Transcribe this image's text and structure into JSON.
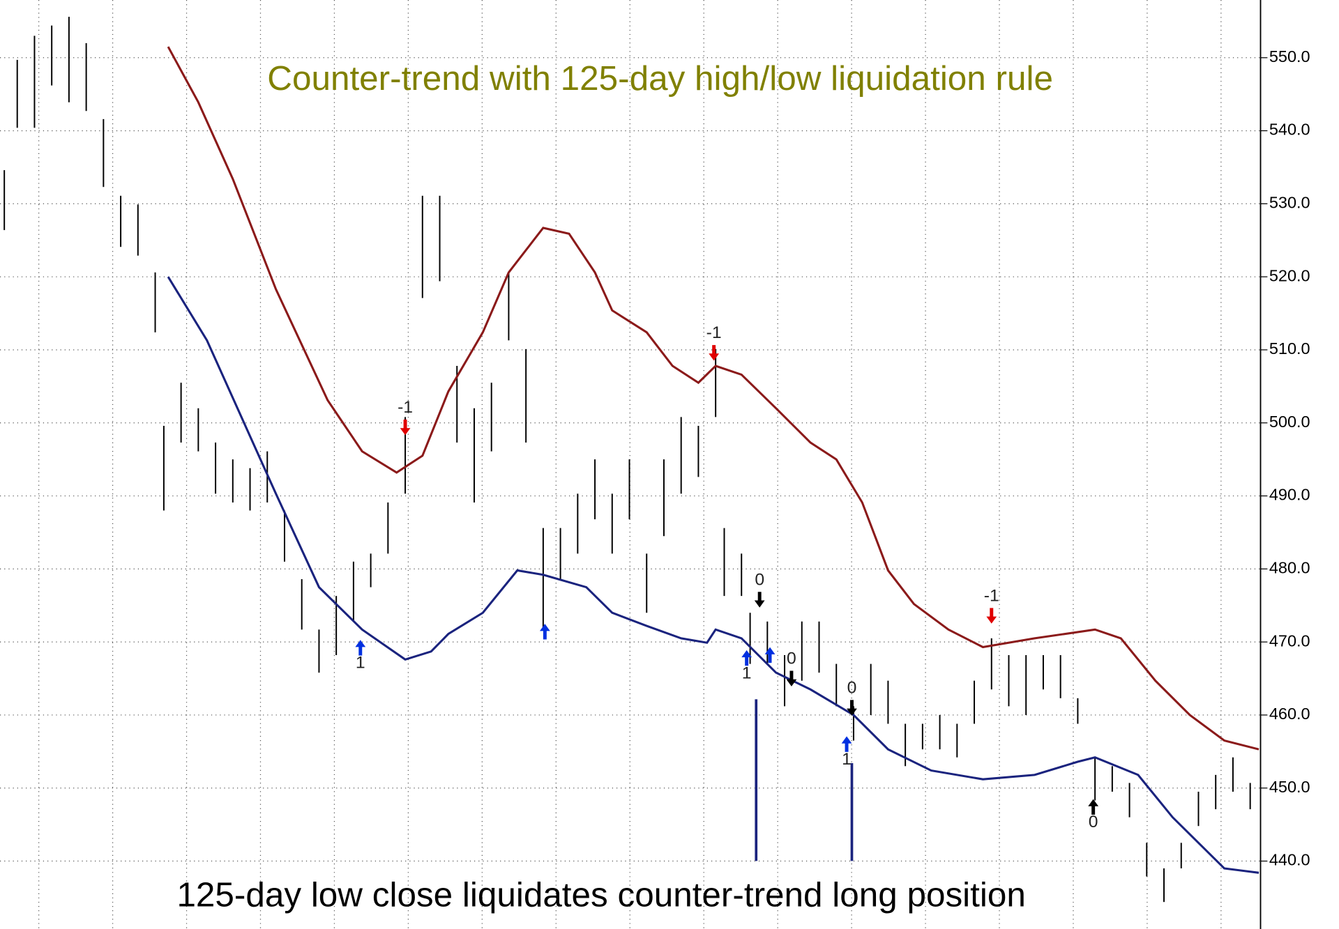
{
  "chart_data": {
    "type": "hilo",
    "title": "Counter-trend with 125-day high/low liquidation rule",
    "annotation": "125-day low close liquidates counter-trend long position",
    "xlim": [
      0,
      292.4
    ],
    "ylim": [
      430.7,
      557.9
    ],
    "yticks": [
      {
        "value": 440,
        "label": "440.0"
      },
      {
        "value": 450,
        "label": "450.0"
      },
      {
        "value": 460,
        "label": "460.0"
      },
      {
        "value": 470,
        "label": "470.0"
      },
      {
        "value": 480,
        "label": "480.0"
      },
      {
        "value": 490,
        "label": "490.0"
      },
      {
        "value": 500,
        "label": "500.0"
      },
      {
        "value": 510,
        "label": "510.0"
      },
      {
        "value": 520,
        "label": "520.0"
      },
      {
        "value": 530,
        "label": "530.0"
      },
      {
        "value": 540,
        "label": "540.0"
      },
      {
        "value": 550,
        "label": "550.0"
      }
    ],
    "grid": true,
    "bar_color": "#000000",
    "x": [
      1,
      4,
      8,
      12,
      16,
      20,
      24,
      28,
      32,
      36,
      38,
      42,
      46,
      50,
      54,
      58,
      62,
      66,
      70,
      74,
      78,
      82,
      86,
      90,
      94,
      98,
      102,
      106,
      110,
      114,
      118,
      122,
      126,
      130,
      134,
      138,
      142,
      146,
      150,
      154,
      158,
      162,
      166,
      168,
      172,
      174,
      178,
      182,
      186,
      190,
      194,
      198,
      202,
      206,
      210,
      214,
      218,
      222,
      226,
      230,
      234,
      238,
      242,
      246,
      250,
      254,
      258,
      262,
      266,
      270,
      274,
      278,
      282,
      286,
      290
    ],
    "high": [
      534.6,
      549.7,
      553,
      554.4,
      555.6,
      552,
      541.6,
      531.1,
      529.9,
      520.6,
      499.6,
      505.5,
      502,
      497.3,
      495,
      493.8,
      496.1,
      488,
      478.6,
      471.7,
      476.3,
      481,
      482.1,
      489.1,
      500.8,
      531.1,
      531.1,
      507.8,
      502,
      505.5,
      520.6,
      510.1,
      485.6,
      485.6,
      490.3,
      495,
      490.3,
      495,
      482.1,
      495,
      500.8,
      499.6,
      510.1,
      485.6,
      482.1,
      474,
      472.8,
      468.2,
      472.8,
      472.8,
      467,
      461.2,
      467,
      464.7,
      458.8,
      458.8,
      460,
      458.8,
      464.7,
      470.5,
      468.2,
      468.2,
      468.2,
      468.2,
      462.3,
      454.2,
      453,
      450.7,
      442.5,
      439,
      442.5,
      449.5,
      451.8,
      454.2,
      450.7
    ],
    "low": [
      526.4,
      540.4,
      540.4,
      546.2,
      543.9,
      542.7,
      532.3,
      524.1,
      522.9,
      512.4,
      488,
      497.3,
      496.1,
      490.3,
      489.1,
      488,
      489.1,
      481,
      471.7,
      465.8,
      468.2,
      472.8,
      477.5,
      482.1,
      490.3,
      517.1,
      519.4,
      497.3,
      489.1,
      496.1,
      511.3,
      497.3,
      471.7,
      478.6,
      482.1,
      486.8,
      482.1,
      486.8,
      474,
      484.5,
      490.3,
      492.6,
      500.8,
      476.3,
      476.3,
      467,
      467,
      461.2,
      464.7,
      465.8,
      461.2,
      456.5,
      460,
      458.8,
      453,
      455.3,
      455.3,
      454.2,
      458.8,
      463.5,
      461.2,
      460,
      463.5,
      462.3,
      458.8,
      448.3,
      449.5,
      446,
      437.9,
      434.4,
      439,
      444.8,
      447.1,
      449.5,
      447.1
    ],
    "upper_band": {
      "color": "#8b1a1a",
      "x": [
        39,
        46,
        54,
        64,
        76,
        84,
        92,
        98,
        104,
        112,
        118,
        126,
        132,
        138,
        142,
        150,
        156,
        162,
        166,
        172,
        180,
        188,
        194,
        200,
        206,
        212,
        220,
        228,
        240,
        254,
        260,
        268,
        276,
        284,
        292
      ],
      "values": [
        551.5,
        543.9,
        533.4,
        518.3,
        503.1,
        496.1,
        493.2,
        495.5,
        504.3,
        512.4,
        520.6,
        526.7,
        525.9,
        520.6,
        515.4,
        512.4,
        507.8,
        505.5,
        507.8,
        506.6,
        502,
        497.3,
        495,
        489.1,
        479.8,
        475.2,
        471.7,
        469.3,
        470.5,
        471.7,
        470.5,
        464.7,
        460,
        456.5,
        455.3
      ]
    },
    "lower_band": {
      "color": "#1a237e",
      "x": [
        39,
        48,
        56,
        64,
        74,
        84,
        94,
        100,
        104,
        112,
        120,
        126,
        136,
        142,
        150,
        158,
        164,
        166,
        172,
        180,
        188,
        198,
        206,
        216,
        228,
        240,
        250,
        254,
        264,
        272,
        284,
        292
      ],
      "values": [
        520,
        511.3,
        500.8,
        490.3,
        477.5,
        471.7,
        467.6,
        468.7,
        471.1,
        474,
        479.8,
        479.2,
        477.5,
        474,
        472.2,
        470.5,
        469.9,
        471.7,
        470.5,
        465.8,
        463.5,
        460,
        455.3,
        452.4,
        451.2,
        451.8,
        453.6,
        454.2,
        451.8,
        446,
        439,
        438.4
      ]
    },
    "signals": [
      {
        "x": 94,
        "y": 499.0,
        "dir": "down",
        "color": "#e00000",
        "label": "-1"
      },
      {
        "x": 165.6,
        "y": 509.2,
        "dir": "down",
        "color": "#e00000",
        "label": "-1"
      },
      {
        "x": 230,
        "y": 473.2,
        "dir": "down",
        "color": "#e00000",
        "label": "-1"
      },
      {
        "x": 83.6,
        "y": 469.6,
        "dir": "up",
        "color": "#0030e0",
        "label": "1"
      },
      {
        "x": 126.4,
        "y": 471.8,
        "dir": "up",
        "color": "#0030e0"
      },
      {
        "x": 173.2,
        "y": 468.2,
        "dir": "up",
        "color": "#0030e0",
        "label": "1"
      },
      {
        "x": 178.6,
        "y": 468.6,
        "dir": "up",
        "color": "#0030e0"
      },
      {
        "x": 196.4,
        "y": 456.4,
        "dir": "up",
        "color": "#0030e0",
        "label": "1"
      },
      {
        "x": 176.2,
        "y": 475.4,
        "dir": "down",
        "color": "#000000",
        "label": "0"
      },
      {
        "x": 183.6,
        "y": 464.6,
        "dir": "down",
        "color": "#000000",
        "label": "0"
      },
      {
        "x": 197.6,
        "y": 460.6,
        "dir": "down",
        "color": "#000000",
        "label": "0"
      },
      {
        "x": 253.6,
        "y": 447.8,
        "dir": "up",
        "color": "#000000",
        "label": "0"
      }
    ]
  }
}
